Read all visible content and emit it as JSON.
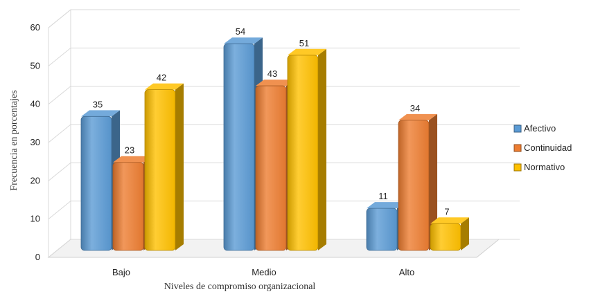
{
  "chart_data": {
    "type": "bar",
    "categories": [
      "Bajo",
      "Medio",
      "Alto"
    ],
    "series": [
      {
        "name": "Afectivo",
        "values": [
          35,
          54,
          11
        ],
        "color": "#5B9BD5"
      },
      {
        "name": "Continuidad",
        "values": [
          23,
          43,
          34
        ],
        "color": "#ED7D31"
      },
      {
        "name": "Normativo",
        "values": [
          42,
          51,
          7
        ],
        "color": "#FFC000"
      }
    ],
    "title": "",
    "xlabel": "Niveles de compromiso organizacional",
    "ylabel": "Frecuencia en porcentajes",
    "ylim": [
      0,
      60
    ],
    "yticks": [
      0,
      10,
      20,
      30,
      40,
      50,
      60
    ],
    "grid": true,
    "legend_position": "right",
    "style": "3d-clustered"
  }
}
